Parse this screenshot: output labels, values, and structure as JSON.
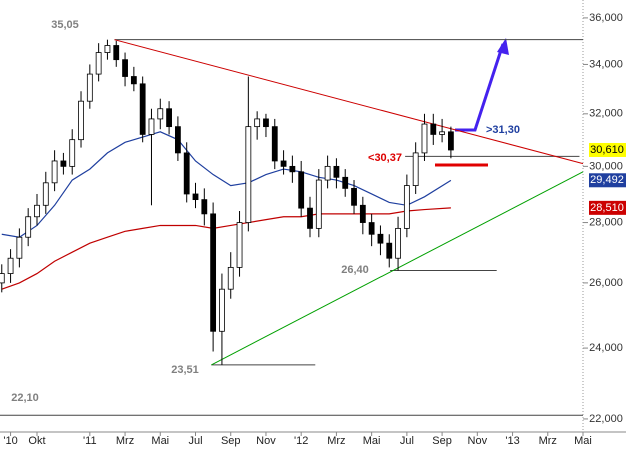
{
  "chart_data": {
    "type": "candlestick",
    "log_scale": true,
    "xlim": [
      6.9,
      40
    ],
    "ylim": [
      21.65,
      36.8
    ],
    "xticks": [
      {
        "value": 7.5,
        "label": "'10"
      },
      {
        "value": 9,
        "label": "Okt"
      },
      {
        "value": 12,
        "label": "'11"
      },
      {
        "value": 14,
        "label": "Mrz"
      },
      {
        "value": 16,
        "label": "Mai"
      },
      {
        "value": 18,
        "label": "Jul"
      },
      {
        "value": 20,
        "label": "Sep"
      },
      {
        "value": 22,
        "label": "Nov"
      },
      {
        "value": 24,
        "label": "'12"
      },
      {
        "value": 26,
        "label": "Mrz"
      },
      {
        "value": 28,
        "label": "Mai"
      },
      {
        "value": 30,
        "label": "Jul"
      },
      {
        "value": 32,
        "label": "Sep"
      },
      {
        "value": 34,
        "label": "Nov"
      },
      {
        "value": 36,
        "label": "'13"
      },
      {
        "value": 38,
        "label": "Mrz"
      },
      {
        "value": 40,
        "label": "Mai"
      }
    ],
    "yticks": [
      {
        "value": 22,
        "label": "22,000"
      },
      {
        "value": 24,
        "label": "24,000"
      },
      {
        "value": 26,
        "label": "26,000"
      },
      {
        "value": 28,
        "label": "28,000"
      },
      {
        "value": 30,
        "label": "30,000"
      },
      {
        "value": 32,
        "label": "32,000"
      },
      {
        "value": 34,
        "label": "34,000"
      },
      {
        "value": 36,
        "label": "36,000"
      }
    ],
    "up_color": "#ffffff",
    "down_color": "#000000",
    "candles": {
      "x": [
        7.0,
        7.5,
        8.0,
        8.5,
        9.0,
        9.5,
        10.0,
        10.5,
        11.0,
        11.5,
        12.0,
        12.5,
        13.0,
        13.5,
        14.0,
        14.5,
        15.0,
        15.5,
        16.0,
        16.5,
        17.0,
        17.5,
        18.0,
        18.5,
        19.0,
        19.5,
        20.0,
        20.5,
        21.0,
        21.5,
        22.0,
        22.5,
        23.0,
        23.5,
        24.0,
        24.5,
        25.0,
        25.5,
        26.0,
        26.5,
        27.0,
        27.5,
        28.0,
        28.5,
        29.0,
        29.5,
        30.0,
        30.5,
        31.0,
        31.5,
        32.0,
        32.5
      ],
      "open": [
        26.0,
        26.3,
        26.8,
        27.5,
        28.2,
        28.6,
        29.4,
        30.2,
        30.0,
        31.0,
        32.5,
        33.6,
        34.5,
        34.8,
        34.2,
        33.5,
        33.2,
        31.2,
        31.8,
        32.2,
        31.5,
        30.5,
        29.0,
        28.8,
        28.3,
        24.5,
        25.8,
        26.5,
        28.0,
        31.5,
        31.8,
        31.5,
        30.2,
        30.0,
        29.8,
        28.5,
        27.8,
        29.5,
        30.0,
        29.6,
        29.2,
        28.6,
        28.0,
        27.6,
        27.3,
        26.8,
        27.8,
        29.3,
        30.5,
        31.6,
        31.2,
        31.3
      ],
      "high": [
        26.6,
        27.1,
        27.8,
        28.5,
        29.0,
        29.8,
        30.6,
        30.5,
        31.4,
        32.9,
        34.0,
        34.9,
        35.05,
        35.0,
        34.5,
        33.9,
        33.5,
        32.2,
        32.6,
        32.5,
        31.9,
        30.9,
        29.4,
        29.2,
        28.7,
        26.3,
        27.0,
        28.4,
        33.5,
        32.1,
        32.0,
        31.8,
        30.6,
        30.4,
        30.2,
        28.9,
        29.9,
        30.4,
        30.3,
        29.9,
        29.5,
        28.9,
        28.3,
        27.9,
        27.6,
        28.2,
        29.7,
        30.9,
        32.0,
        32.0,
        31.8,
        31.5
      ],
      "low": [
        25.7,
        26.0,
        26.5,
        27.2,
        27.9,
        28.3,
        29.1,
        29.7,
        29.7,
        30.7,
        32.2,
        33.3,
        34.2,
        33.9,
        33.1,
        32.9,
        30.9,
        28.6,
        31.4,
        31.2,
        30.2,
        28.7,
        28.5,
        27.9,
        23.9,
        23.51,
        25.5,
        26.2,
        27.7,
        31.0,
        31.1,
        29.9,
        29.7,
        29.4,
        28.2,
        27.5,
        27.5,
        29.2,
        29.2,
        28.9,
        28.3,
        27.6,
        27.2,
        26.9,
        26.5,
        26.4,
        27.5,
        29.0,
        30.2,
        30.8,
        30.9,
        30.3
      ],
      "close": [
        26.3,
        26.8,
        27.5,
        28.2,
        28.6,
        29.4,
        30.2,
        30.0,
        31.0,
        32.5,
        33.6,
        34.5,
        34.8,
        34.2,
        33.5,
        33.2,
        31.2,
        31.8,
        32.2,
        31.5,
        30.5,
        29.0,
        28.8,
        28.3,
        24.5,
        25.8,
        26.5,
        28.0,
        31.5,
        31.8,
        31.5,
        30.2,
        30.0,
        29.8,
        28.5,
        27.8,
        29.5,
        30.0,
        29.6,
        29.2,
        28.6,
        28.0,
        27.6,
        27.3,
        26.8,
        27.8,
        29.3,
        30.5,
        31.6,
        31.2,
        31.3,
        30.61
      ]
    },
    "series": [
      {
        "color": "#1f3f9f",
        "x": [
          7,
          8,
          9,
          10,
          11,
          12,
          13,
          14,
          15,
          16,
          17,
          18,
          19,
          20,
          21,
          22,
          23,
          24,
          25,
          26,
          27,
          28,
          29,
          30,
          31,
          32.5
        ],
        "values": [
          27.6,
          27.5,
          27.9,
          28.6,
          29.5,
          29.9,
          30.5,
          30.9,
          31.1,
          31.3,
          31.0,
          30.2,
          29.7,
          29.3,
          29.4,
          29.7,
          29.9,
          29.8,
          29.6,
          29.5,
          29.3,
          29.0,
          28.7,
          28.6,
          28.9,
          29.49
        ]
      },
      {
        "color": "#c00000",
        "x": [
          7,
          8,
          9,
          10,
          11,
          12,
          13,
          14,
          15,
          16,
          17,
          18,
          19,
          20,
          21,
          22,
          23,
          24,
          25,
          26,
          27,
          28,
          29,
          30,
          31,
          32.5
        ],
        "values": [
          25.8,
          26.0,
          26.3,
          26.7,
          27.0,
          27.3,
          27.5,
          27.7,
          27.8,
          27.9,
          27.9,
          27.9,
          27.8,
          27.9,
          28.0,
          28.1,
          28.2,
          28.2,
          28.3,
          28.3,
          28.3,
          28.3,
          28.3,
          28.4,
          28.45,
          28.51
        ]
      }
    ],
    "trendlines": [
      {
        "color": "#cc0000",
        "x": [
          13.4,
          40
        ],
        "values": [
          35.05,
          30.1
        ]
      },
      {
        "color": "#00a000",
        "x": [
          18.9,
          40
        ],
        "values": [
          23.51,
          29.8
        ]
      }
    ],
    "levels": [
      {
        "value": 35.05,
        "label": "35,05",
        "x": [
          13.4,
          40
        ],
        "label_color": "#808080"
      },
      {
        "value": 22.1,
        "label": "22,10",
        "x": [
          6.9,
          40
        ],
        "label_color": "#808080"
      },
      {
        "value": 23.51,
        "label": "23,51",
        "x": [
          18.9,
          24.8
        ],
        "label_color": "#808080"
      },
      {
        "value": 26.4,
        "label": "26,40",
        "x": [
          29.05,
          35.1
        ],
        "label_color": "#808080"
      },
      {
        "value": 30.37,
        "label": "<30,37",
        "x": [
          29.9,
          39.8
        ],
        "label_color": "#dd0000"
      }
    ],
    "annotations": [
      {
        "text": ">31,30",
        "color": "#1f3fa0"
      }
    ],
    "last_values": [
      {
        "value": 30.61,
        "label": "30,610",
        "color": "#ffff00",
        "text_color": "#000000"
      },
      {
        "value": 29.492,
        "label": "29,492",
        "color": "#1f3f9f",
        "text_color": "#ffffff"
      },
      {
        "value": 28.51,
        "label": "28,510",
        "color": "#cc0000",
        "text_color": "#ffffff"
      }
    ]
  }
}
